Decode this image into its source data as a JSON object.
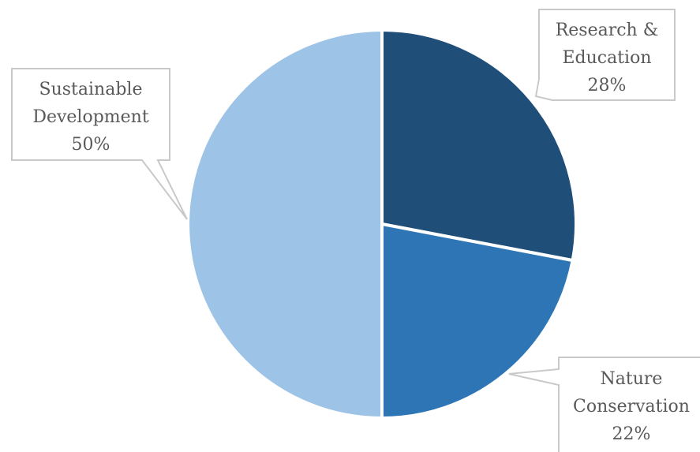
{
  "chart_data": {
    "type": "pie",
    "title": "",
    "start_angle_deg": 0,
    "direction": "clockwise",
    "slices": [
      {
        "label_lines": [
          "Research &",
          "Education"
        ],
        "value": 28,
        "value_label": "28%",
        "color": "#1f4e79"
      },
      {
        "label_lines": [
          "Nature",
          "Conservation"
        ],
        "value": 22,
        "value_label": "22%",
        "color": "#2e75b6"
      },
      {
        "label_lines": [
          "Sustainable",
          "Development"
        ],
        "value": 50,
        "value_label": "50%",
        "color": "#9dc3e6"
      }
    ],
    "slice_border_color": "#ffffff",
    "callout_border_color": "#c9c9c9",
    "label_text_color": "#595959"
  }
}
